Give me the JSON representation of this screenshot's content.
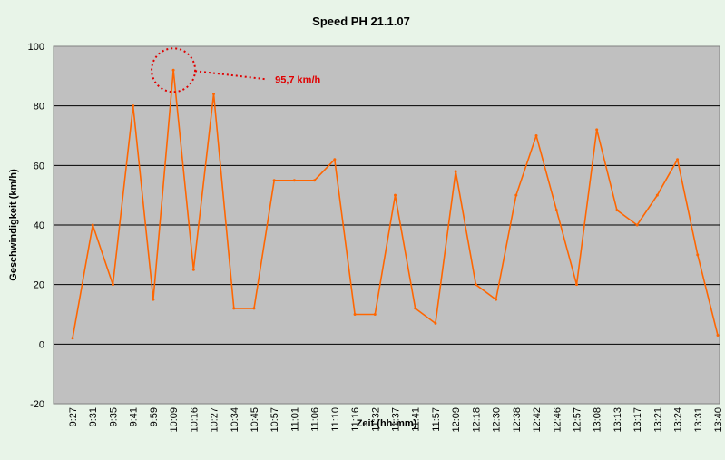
{
  "chart_data": {
    "type": "line",
    "title": "Speed PH 21.1.07",
    "xlabel": "Zeit (hh:mm)",
    "ylabel": "Geschwindigkeit (km/h)",
    "ylim": [
      -20,
      100
    ],
    "yticks": [
      -20,
      0,
      20,
      40,
      60,
      80,
      100
    ],
    "grid": true,
    "legend": "none",
    "colors": {
      "line": "#ff6600",
      "plot_bg": "#c0c0c0",
      "page_bg": "#e8f4e8",
      "annotation": "#e00000",
      "grid": "#000000"
    },
    "x": [
      "9:27",
      "9:31",
      "9:35",
      "9:41",
      "9:59",
      "10:09",
      "10:16",
      "10:27",
      "10:34",
      "10:45",
      "10:57",
      "11:01",
      "11:06",
      "11:10",
      "11:16",
      "11:32",
      "11:37",
      "11:41",
      "11:57",
      "12:09",
      "12:18",
      "12:30",
      "12:38",
      "12:42",
      "12:46",
      "12:57",
      "13:08",
      "13:13",
      "13:17",
      "13:21",
      "13:24",
      "13:31",
      "13:40"
    ],
    "series": [
      {
        "values": [
          2,
          40,
          20,
          80,
          15,
          92,
          25,
          84,
          12,
          12,
          55,
          55,
          55,
          62,
          10,
          10,
          50,
          12,
          7,
          58,
          20,
          15,
          50,
          70,
          45,
          20,
          72,
          45,
          40,
          50,
          62,
          30,
          3
        ]
      }
    ],
    "annotations": [
      {
        "text": "95,7 km/h",
        "x": "10:09",
        "y": 92
      }
    ]
  }
}
